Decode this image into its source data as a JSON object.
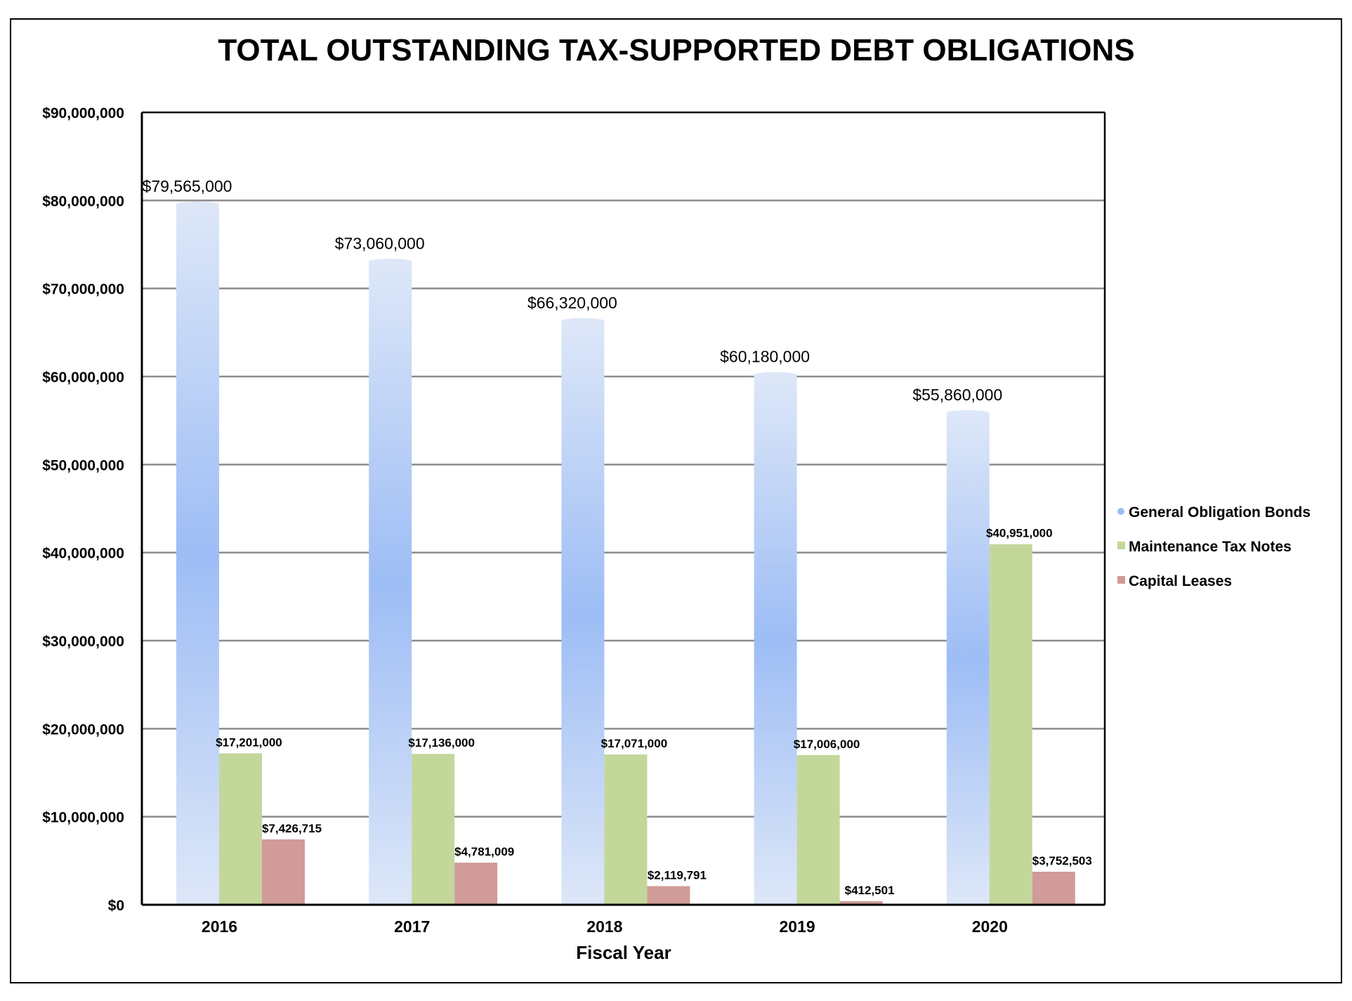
{
  "chart_data": {
    "type": "bar",
    "title": "TOTAL OUTSTANDING TAX-SUPPORTED DEBT OBLIGATIONS",
    "xlabel": "Fiscal Year",
    "ylabel": "",
    "categories": [
      "2016",
      "2017",
      "2018",
      "2019",
      "2020"
    ],
    "ylim": [
      0,
      90000000
    ],
    "yticks": [
      0,
      10000000,
      20000000,
      30000000,
      40000000,
      50000000,
      60000000,
      70000000,
      80000000,
      90000000
    ],
    "ytick_labels": [
      "$0",
      "$10,000,000",
      "$20,000,000",
      "$30,000,000",
      "$40,000,000",
      "$50,000,000",
      "$60,000,000",
      "$70,000,000",
      "$80,000,000",
      "$90,000,000"
    ],
    "grid": true,
    "legend_position": "right",
    "series": [
      {
        "name": "General Obligation Bonds",
        "color": "#9dbdf5",
        "values": [
          79565000,
          73060000,
          66320000,
          60180000,
          55860000
        ],
        "labels": [
          "$79,565,000",
          "$73,060,000",
          "$66,320,000",
          "$60,180,000",
          "$55,860,000"
        ]
      },
      {
        "name": "Maintenance Tax Notes",
        "color": "#c4d79b",
        "values": [
          17201000,
          17136000,
          17071000,
          17006000,
          40951000
        ],
        "labels": [
          "$17,201,000",
          "$17,136,000",
          "$17,071,000",
          "$17,006,000",
          "$40,951,000"
        ]
      },
      {
        "name": "Capital Leases",
        "color": "#d09b98",
        "values": [
          7426715,
          4781009,
          2119791,
          412501,
          3752503
        ],
        "labels": [
          "$7,426,715",
          "$4,781,009",
          "$2,119,791",
          "$412,501",
          "$3,752,503"
        ]
      }
    ]
  }
}
